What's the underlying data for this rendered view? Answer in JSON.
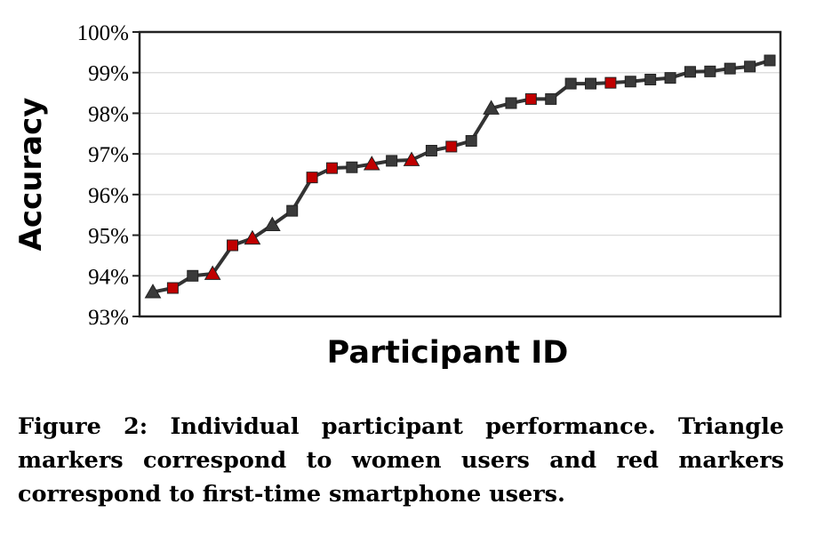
{
  "chart_data": {
    "type": "line",
    "xlabel": "Participant ID",
    "ylabel": "Accuracy",
    "ylim": [
      93,
      100
    ],
    "yticks": [
      "93%",
      "94%",
      "95%",
      "96%",
      "97%",
      "98%",
      "99%",
      "100%"
    ],
    "grid": "horizontal",
    "legend": "none",
    "line_color": "#333333",
    "colors": {
      "regular": "#3a3a3a",
      "first_time": "#c00000"
    },
    "points": [
      {
        "x": 1,
        "y": 93.6,
        "marker": "triangle",
        "color": "regular"
      },
      {
        "x": 2,
        "y": 93.7,
        "marker": "square",
        "color": "first_time"
      },
      {
        "x": 3,
        "y": 94.0,
        "marker": "square",
        "color": "regular"
      },
      {
        "x": 4,
        "y": 94.05,
        "marker": "triangle",
        "color": "first_time"
      },
      {
        "x": 5,
        "y": 94.75,
        "marker": "square",
        "color": "first_time"
      },
      {
        "x": 6,
        "y": 94.92,
        "marker": "triangle",
        "color": "first_time"
      },
      {
        "x": 7,
        "y": 95.25,
        "marker": "triangle",
        "color": "regular"
      },
      {
        "x": 8,
        "y": 95.6,
        "marker": "square",
        "color": "regular"
      },
      {
        "x": 9,
        "y": 96.42,
        "marker": "square",
        "color": "first_time"
      },
      {
        "x": 10,
        "y": 96.65,
        "marker": "square",
        "color": "first_time"
      },
      {
        "x": 11,
        "y": 96.67,
        "marker": "square",
        "color": "regular"
      },
      {
        "x": 12,
        "y": 96.75,
        "marker": "triangle",
        "color": "first_time"
      },
      {
        "x": 13,
        "y": 96.83,
        "marker": "square",
        "color": "regular"
      },
      {
        "x": 14,
        "y": 96.85,
        "marker": "triangle",
        "color": "first_time"
      },
      {
        "x": 15,
        "y": 97.08,
        "marker": "square",
        "color": "regular"
      },
      {
        "x": 16,
        "y": 97.18,
        "marker": "square",
        "color": "first_time"
      },
      {
        "x": 17,
        "y": 97.32,
        "marker": "square",
        "color": "regular"
      },
      {
        "x": 18,
        "y": 98.12,
        "marker": "triangle",
        "color": "regular"
      },
      {
        "x": 19,
        "y": 98.25,
        "marker": "square",
        "color": "regular"
      },
      {
        "x": 20,
        "y": 98.35,
        "marker": "square",
        "color": "first_time"
      },
      {
        "x": 21,
        "y": 98.35,
        "marker": "square",
        "color": "regular"
      },
      {
        "x": 22,
        "y": 98.73,
        "marker": "square",
        "color": "regular"
      },
      {
        "x": 23,
        "y": 98.73,
        "marker": "square",
        "color": "regular"
      },
      {
        "x": 24,
        "y": 98.75,
        "marker": "square",
        "color": "first_time"
      },
      {
        "x": 25,
        "y": 98.78,
        "marker": "square",
        "color": "regular"
      },
      {
        "x": 26,
        "y": 98.83,
        "marker": "square",
        "color": "regular"
      },
      {
        "x": 27,
        "y": 98.87,
        "marker": "square",
        "color": "regular"
      },
      {
        "x": 28,
        "y": 99.02,
        "marker": "square",
        "color": "regular"
      },
      {
        "x": 29,
        "y": 99.03,
        "marker": "square",
        "color": "regular"
      },
      {
        "x": 30,
        "y": 99.1,
        "marker": "square",
        "color": "regular"
      },
      {
        "x": 31,
        "y": 99.15,
        "marker": "square",
        "color": "regular"
      },
      {
        "x": 32,
        "y": 99.3,
        "marker": "square",
        "color": "regular"
      }
    ]
  },
  "caption": "Figure 2: Individual participant performance. Triangle markers correspond to women users and red markers correspond to first-time smartphone users."
}
